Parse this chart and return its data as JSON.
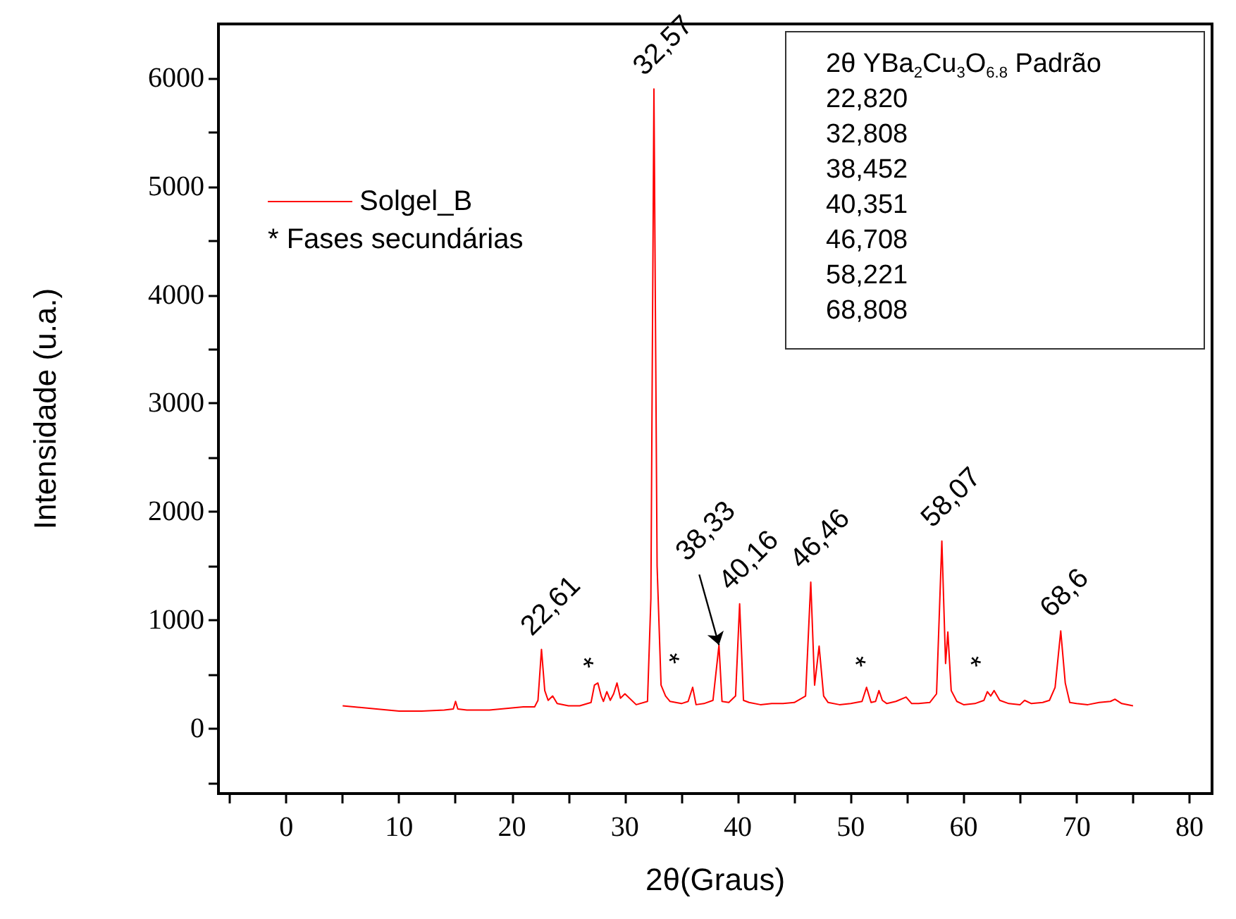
{
  "chart_data": {
    "type": "line",
    "xlabel": "2θ(Graus)",
    "ylabel": "Intensidade (u.a.)",
    "legend": "top left",
    "grid": false,
    "xlim": [
      -6,
      82
    ],
    "ylim": [
      -600,
      6500
    ],
    "xticks": [
      {
        "value": -5,
        "label": null
      },
      0,
      {
        "value": 5,
        "label": null
      },
      10,
      {
        "value": 15,
        "label": null
      },
      20,
      {
        "value": 25,
        "label": null
      },
      30,
      {
        "value": 35,
        "label": null
      },
      40,
      {
        "value": 45,
        "label": null
      },
      50,
      {
        "value": 55,
        "label": null
      },
      60,
      {
        "value": 65,
        "label": null
      },
      70,
      {
        "value": 75,
        "label": null
      },
      80
    ],
    "yticks": [
      {
        "value": -500,
        "label": null
      },
      0,
      {
        "value": 500,
        "label": null
      },
      1000,
      {
        "value": 1500,
        "label": null
      },
      2000,
      {
        "value": 2500,
        "label": null
      },
      3000,
      {
        "value": 3500,
        "label": null
      },
      4000,
      {
        "value": 4500,
        "label": null
      },
      5000,
      {
        "value": 5500,
        "label": null
      },
      6000
    ],
    "x": [
      5,
      6,
      8,
      10,
      12,
      14,
      14.8,
      15,
      15.2,
      16,
      18,
      20,
      21,
      22,
      22.3,
      22.61,
      22.9,
      23.2,
      23.6,
      24,
      25,
      26,
      27,
      27.3,
      27.6,
      27.9,
      28.1,
      28.4,
      28.7,
      29,
      29.3,
      29.6,
      30,
      31,
      32,
      32.3,
      32.57,
      32.85,
      33.2,
      33.6,
      34,
      35,
      35.6,
      36,
      36.3,
      37,
      37.8,
      38.33,
      38.6,
      39.2,
      39.8,
      40.16,
      40.5,
      41,
      42,
      43,
      44,
      45,
      46,
      46.46,
      46.8,
      47.2,
      47.6,
      48,
      49,
      50,
      51,
      51.4,
      51.8,
      52.2,
      52.5,
      52.8,
      53.2,
      54,
      54.9,
      55.4,
      56,
      57,
      57.6,
      58.07,
      58.4,
      58.6,
      58.9,
      59.4,
      60,
      61,
      61.8,
      62.1,
      62.4,
      62.7,
      63.2,
      64,
      65,
      65.4,
      66,
      67,
      67.6,
      68.1,
      68.6,
      69,
      69.4,
      70,
      71,
      72,
      73,
      73.4,
      74,
      75
    ],
    "series": [
      {
        "name": "Solgel_B",
        "color": "#ff0000",
        "values": [
          210,
          200,
          180,
          160,
          160,
          170,
          180,
          250,
          180,
          170,
          170,
          190,
          200,
          200,
          260,
          730,
          350,
          260,
          300,
          230,
          210,
          210,
          240,
          400,
          420,
          300,
          250,
          340,
          260,
          320,
          420,
          280,
          320,
          220,
          250,
          1200,
          5900,
          1500,
          400,
          300,
          250,
          230,
          250,
          380,
          220,
          230,
          260,
          770,
          250,
          240,
          300,
          1150,
          260,
          240,
          220,
          230,
          230,
          240,
          300,
          1350,
          400,
          760,
          300,
          240,
          220,
          230,
          250,
          380,
          240,
          250,
          350,
          260,
          230,
          250,
          290,
          230,
          230,
          240,
          320,
          1730,
          600,
          890,
          350,
          250,
          220,
          230,
          260,
          340,
          300,
          350,
          260,
          230,
          220,
          260,
          230,
          240,
          260,
          380,
          900,
          420,
          240,
          230,
          220,
          240,
          250,
          270,
          230,
          210
        ]
      }
    ],
    "annotations": [
      "* Fases secundárias",
      "2θ YBa$_{2}$Cu$_{3}$O$_{6.8}$ Padrão",
      "22,820",
      "32,808",
      "38,452",
      "40,351",
      "46,708",
      "58,221",
      "68,808",
      {
        "text": "22,61",
        "x": 22.61,
        "y": 730
      },
      {
        "text": "*",
        "x": 28.4,
        "y": 340
      },
      {
        "text": "32,57",
        "x": 32.57,
        "y": 5900
      },
      {
        "text": "*",
        "x": 36,
        "y": 380
      },
      {
        "text": "38,33",
        "x": 38.33,
        "y": 770
      },
      {
        "text": "40,16",
        "x": 40.16,
        "y": 1150
      },
      {
        "text": "46,46",
        "x": 46.46,
        "y": 1350
      },
      {
        "text": "*",
        "x": 52.5,
        "y": 350
      },
      {
        "text": "58,07",
        "x": 58.07,
        "y": 1730
      },
      {
        "text": "*",
        "x": 62.7,
        "y": 350
      },
      {
        "text": "68,6",
        "x": 68.6,
        "y": 900
      }
    ]
  }
}
